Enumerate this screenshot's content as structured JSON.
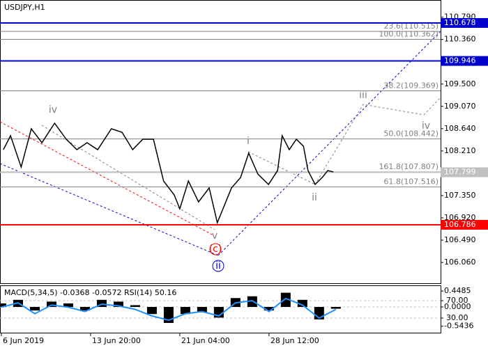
{
  "chart_data": [
    {
      "type": "line",
      "title": "USDJPY,H1",
      "color": "#000000",
      "x": [
        4,
        18,
        39,
        59,
        80,
        105,
        128,
        149,
        169,
        190,
        217,
        238,
        259,
        279,
        300,
        320,
        341,
        352,
        369,
        389,
        410,
        426,
        440,
        454,
        472,
        488,
        506,
        527,
        545,
        554,
        568,
        582,
        596,
        605,
        619,
        633,
        644,
        655
      ],
      "values": [
        108.235,
        108.504,
        107.899,
        108.638,
        108.369,
        108.745,
        108.436,
        108.235,
        108.369,
        108.235,
        108.638,
        108.571,
        108.235,
        108.436,
        108.436,
        107.631,
        107.363,
        107.094,
        107.631,
        107.228,
        107.497,
        106.826,
        107.161,
        107.497,
        107.698,
        108.168,
        107.765,
        107.564,
        107.832,
        108.504,
        108.235,
        108.436,
        108.302,
        107.832,
        107.564,
        107.698,
        107.832,
        107.806
      ],
      "xlim": [
        -2.75,
        866.6
      ],
      "ylim": [
        105.645,
        111.121
      ],
      "xticks": [
        {
          "value": 0,
          "label": "6 Jun 2019"
        },
        {
          "value": 176,
          "label": "13 Jun 20:00"
        },
        {
          "value": 352,
          "label": "21 Jun 04:00"
        },
        {
          "value": 528,
          "label": "28 Jun 12:00"
        }
      ],
      "yticks": [
        {
          "value": 110.79,
          "label": "110.790"
        },
        {
          "value": 110.36,
          "label": "110.360"
        },
        {
          "value": 109.5,
          "label": "109.500"
        },
        {
          "value": 109.07,
          "label": "109.070"
        },
        {
          "value": 108.64,
          "label": "108.640"
        },
        {
          "value": 108.21,
          "label": "108.210"
        },
        {
          "value": 107.35,
          "label": "107.350"
        },
        {
          "value": 106.92,
          "label": "106.920"
        },
        {
          "value": 106.49,
          "label": "106.490"
        },
        {
          "value": 106.06,
          "label": "106.060"
        }
      ],
      "levels": [
        {
          "value": 110.678,
          "label": "110.678",
          "color": "#0000cc"
        },
        {
          "value": 109.946,
          "label": "109.946",
          "color": "#0000cc"
        },
        {
          "value": 106.786,
          "label": "106.786",
          "color": "#ff0000"
        },
        {
          "value": 107.799,
          "label": "107.799",
          "color": "#c0c0c0"
        }
      ],
      "fibs": [
        {
          "value": 110.515,
          "label": "23.6(110.515)"
        },
        {
          "value": 110.362,
          "label": "100.0(110.362)"
        },
        {
          "value": 109.369,
          "label": "38.2(109.369)"
        },
        {
          "value": 108.442,
          "label": "50.0(108.442)"
        },
        {
          "value": 107.807,
          "label": "161.8(107.807)"
        },
        {
          "value": 107.516,
          "label": "61.8(107.516)"
        }
      ],
      "annotations": [
        {
          "text": "iv",
          "color": "#808080"
        },
        {
          "text": "iii",
          "color": "#808080"
        },
        {
          "text": "iv",
          "color": "#808080"
        },
        {
          "text": "i",
          "color": "#808080"
        },
        {
          "text": "ii",
          "color": "#808080"
        },
        {
          "text": "v",
          "color": "#808080"
        },
        {
          "text": "(c)",
          "color": "#ff0000"
        },
        {
          "text": "ii",
          "color": "#0000cc"
        }
      ]
    },
    {
      "type": "indicator",
      "title": "MACD(5,34,5) -0.0368 -0.0572 RSI(14) 50.16",
      "x": [
        0,
        33,
        66,
        99,
        132,
        165,
        198,
        231,
        264,
        297,
        330,
        363,
        396,
        429,
        462,
        495,
        528,
        561,
        594,
        627,
        660
      ],
      "macd": [
        0.1,
        0.2,
        -0.1,
        0.15,
        0.1,
        -0.1,
        0.2,
        0.15,
        0.05,
        -0.2,
        -0.45,
        -0.2,
        -0.15,
        -0.3,
        0.25,
        0.3,
        -0.1,
        0.4,
        0.2,
        -0.35,
        -0.05
      ],
      "rsi": [
        55,
        65,
        40,
        60,
        55,
        45,
        62,
        58,
        50,
        35,
        25,
        40,
        45,
        35,
        65,
        70,
        45,
        75,
        60,
        30,
        50
      ],
      "macd_color": "#000000",
      "rsi_color": "#1e90ff",
      "ylim": [
        -0.725,
        0.608
      ],
      "yticks": [
        0.4485,
        {
          "value": 0,
          "label": "0.0000"
        },
        -0.5436
      ],
      "y2lim": [
        -3.6,
        105.2
      ],
      "y2ticks": [
        {
          "value": 70,
          "label": "70.00"
        },
        {
          "value": 30,
          "label": "30.00"
        }
      ]
    }
  ]
}
